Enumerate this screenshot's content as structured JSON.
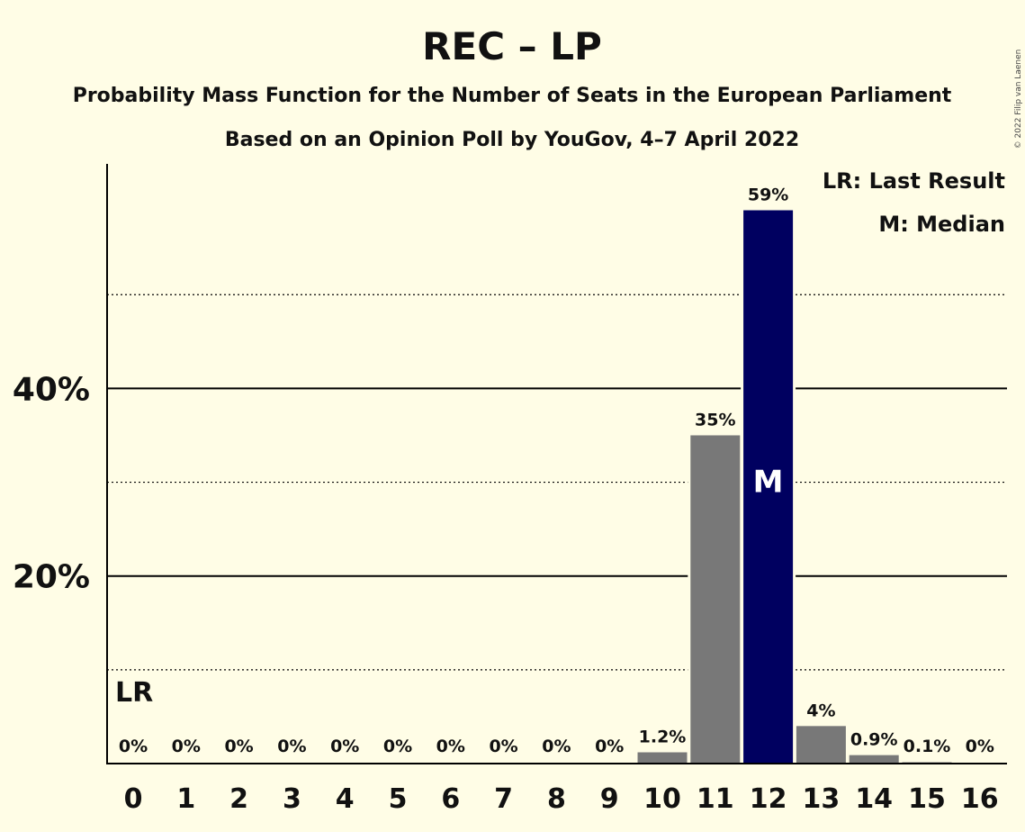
{
  "chart_data": {
    "type": "bar",
    "title": "REC – LP",
    "subtitle": "Probability Mass Function for the Number of Seats in the European Parliament",
    "subtitle2": "Based on an Opinion Poll by YouGov, 4–7 April 2022",
    "categories": [
      "0",
      "1",
      "2",
      "3",
      "4",
      "5",
      "6",
      "7",
      "8",
      "9",
      "10",
      "11",
      "12",
      "13",
      "14",
      "15",
      "16"
    ],
    "values": [
      0,
      0,
      0,
      0,
      0,
      0,
      0,
      0,
      0,
      0,
      1.2,
      35,
      59,
      4,
      0.9,
      0.1,
      0
    ],
    "data_labels": [
      "0%",
      "0%",
      "0%",
      "0%",
      "0%",
      "0%",
      "0%",
      "0%",
      "0%",
      "0%",
      "1.2%",
      "35%",
      "59%",
      "4%",
      "0.9%",
      "0.1%",
      "0%"
    ],
    "ylim": [
      0,
      64
    ],
    "yticks": [
      {
        "value": 20,
        "label": "20%"
      },
      {
        "value": 40,
        "label": "40%"
      }
    ],
    "minor_gridlines": [
      10,
      30,
      50
    ],
    "legend": [
      "LR: Last Result",
      "M: Median"
    ],
    "legend_position": "top-right",
    "last_result_seat": 0,
    "last_result_label": "LR",
    "median_seat": 12,
    "median_label": "M",
    "colors": {
      "median_bar": "#000060",
      "other_bar": "#787878",
      "background": "#FFFDE6"
    }
  },
  "copyright": "© 2022 Filip van Laenen"
}
